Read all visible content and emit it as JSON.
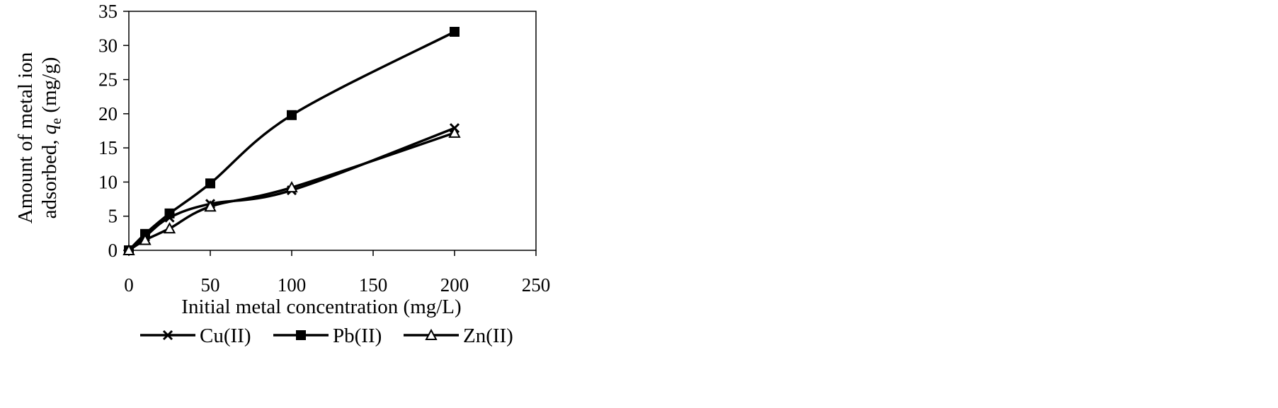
{
  "chart_data": {
    "type": "line",
    "title": "",
    "xlabel": "Initial metal concentration (mg/L)",
    "ylabel_line1": "Amount of metal ion",
    "ylabel_line2_prefix": "adsorbed, ",
    "ylabel_symbol": "q",
    "ylabel_subscript": "e",
    "ylabel_unit": " (mg/g)",
    "xlim": [
      0,
      250
    ],
    "ylim": [
      0,
      35
    ],
    "xticks": [
      "0",
      "50",
      "100",
      "150",
      "200",
      "250"
    ],
    "yticks": [
      "0",
      "5",
      "10",
      "15",
      "20",
      "25",
      "30",
      "35"
    ],
    "grid": false,
    "smooth": true,
    "legend_position": "bottom",
    "series": [
      {
        "name": "Cu(II)",
        "marker": "x",
        "color": "#000000",
        "x": [
          0,
          10,
          25,
          50,
          100,
          200
        ],
        "y": [
          0,
          2.0,
          4.8,
          6.8,
          8.8,
          17.9
        ]
      },
      {
        "name": "Pb(II)",
        "marker": "square",
        "color": "#000000",
        "x": [
          0,
          10,
          25,
          50,
          100,
          200
        ],
        "y": [
          0,
          2.4,
          5.4,
          9.8,
          19.8,
          32.0
        ]
      },
      {
        "name": "Zn(II)",
        "marker": "triangle-open",
        "color": "#000000",
        "x": [
          0,
          10,
          25,
          50,
          100,
          200
        ],
        "y": [
          0,
          1.5,
          3.2,
          6.4,
          9.2,
          17.2
        ]
      }
    ]
  }
}
